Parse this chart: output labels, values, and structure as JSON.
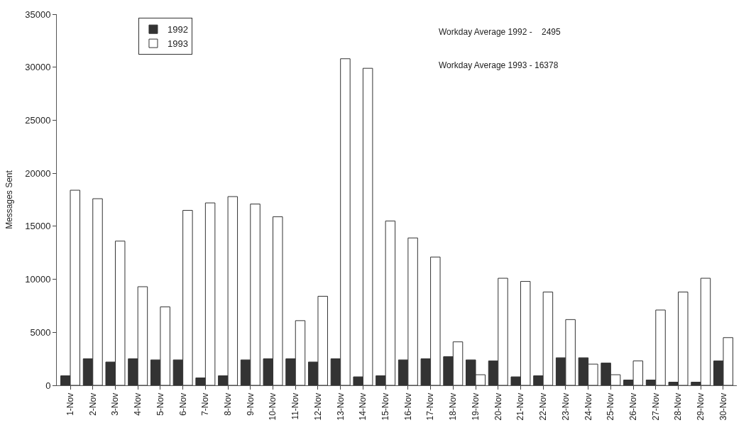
{
  "chart_data": {
    "type": "bar",
    "ylabel": "Messages Sent",
    "categories": [
      "1-Nov",
      "2-Nov",
      "3-Nov",
      "4-Nov",
      "5-Nov",
      "6-Nov",
      "7-Nov",
      "8-Nov",
      "9-Nov",
      "10-Nov",
      "11-Nov",
      "12-Nov",
      "13-Nov",
      "14-Nov",
      "15-Nov",
      "16-Nov",
      "17-Nov",
      "18-Nov",
      "19-Nov",
      "20-Nov",
      "21-Nov",
      "22-Nov",
      "23-Nov",
      "24-Nov",
      "25-Nov",
      "26-Nov",
      "27-Nov",
      "28-Nov",
      "29-Nov",
      "30-Nov"
    ],
    "series": [
      {
        "name": "1992",
        "color": "#333333",
        "values": [
          900,
          2500,
          2200,
          2500,
          2400,
          2400,
          700,
          900,
          2400,
          2500,
          2500,
          2200,
          2500,
          800,
          900,
          2400,
          2500,
          2700,
          2400,
          2300,
          800,
          900,
          2600,
          2600,
          2100,
          500,
          500,
          300,
          300,
          2300
        ]
      },
      {
        "name": "1993",
        "color": "#ffffff",
        "values": [
          18400,
          17600,
          13600,
          9300,
          7400,
          16500,
          17200,
          17800,
          17100,
          15900,
          6100,
          8400,
          30800,
          29900,
          15500,
          13900,
          12100,
          4100,
          1000,
          10100,
          9800,
          8800,
          6200,
          2000,
          1000,
          2300,
          7100,
          8800,
          10100,
          4500
        ]
      }
    ],
    "ylim": [
      0,
      35000
    ],
    "yticks": [
      0,
      5000,
      10000,
      15000,
      20000,
      25000,
      30000,
      35000
    ],
    "annotations": [
      "Workday Average 1992 -    2495",
      "Workday Average 1993 - 16378"
    ],
    "legend": "top left"
  }
}
